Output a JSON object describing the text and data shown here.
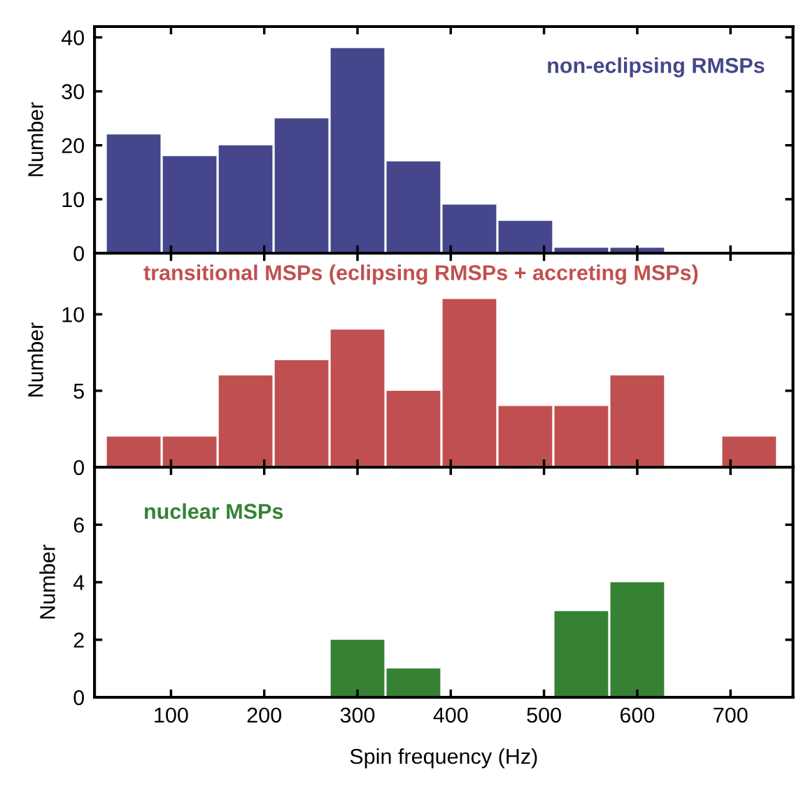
{
  "chart_data": [
    {
      "type": "histogram",
      "title": "non-eclipsing RMSPs",
      "ylabel": "Number",
      "color": "#46468c",
      "bins": [
        30,
        90,
        150,
        210,
        270,
        330,
        390,
        450,
        510,
        570,
        630,
        690,
        750
      ],
      "values": [
        22,
        18,
        20,
        25,
        38,
        17,
        9,
        6,
        1,
        1,
        0,
        0
      ],
      "xlim": [
        18,
        767
      ],
      "xticks": [
        100,
        200,
        300,
        400,
        500,
        600,
        700
      ],
      "ylim": [
        0,
        42
      ],
      "yticks": [
        0,
        10,
        20,
        30,
        40
      ],
      "tick_labels": "y",
      "grid": false,
      "legend": false
    },
    {
      "type": "histogram",
      "title": "transitional MSPs (eclipsing RMSPs + accreting MSPs)",
      "ylabel": "Number",
      "color": "#c0504f",
      "bins": [
        30,
        90,
        150,
        210,
        270,
        330,
        390,
        450,
        510,
        570,
        630,
        690,
        750
      ],
      "values": [
        2,
        2,
        6,
        7,
        9,
        5,
        11,
        4,
        4,
        6,
        0,
        2
      ],
      "xlim": [
        18,
        767
      ],
      "xticks": [
        100,
        200,
        300,
        400,
        500,
        600,
        700
      ],
      "ylim": [
        0,
        14
      ],
      "yticks": [
        0,
        5,
        10
      ],
      "tick_labels": "y",
      "grid": false,
      "legend": false
    },
    {
      "type": "histogram",
      "title": "nuclear MSPs",
      "xlabel": "Spin frequency (Hz)",
      "ylabel": "Number",
      "color": "#358234",
      "bins": [
        30,
        90,
        150,
        210,
        270,
        330,
        390,
        450,
        510,
        570,
        630,
        690,
        750
      ],
      "values": [
        0,
        0,
        0,
        0,
        2,
        1,
        0,
        0,
        3,
        4,
        0,
        0
      ],
      "xlim": [
        18,
        767
      ],
      "xticks": [
        100,
        200,
        300,
        400,
        500,
        600,
        700
      ],
      "ylim": [
        0,
        8
      ],
      "yticks": [
        0,
        2,
        4,
        6
      ],
      "grid": false,
      "legend": false
    }
  ]
}
